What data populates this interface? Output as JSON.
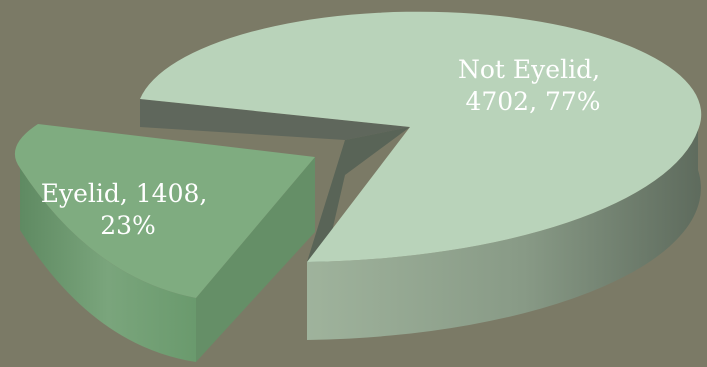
{
  "chart_data": {
    "type": "pie",
    "title": "",
    "style": "3d-exploded",
    "legend": "none",
    "slices": [
      {
        "name": "Eyelid",
        "value": 1408,
        "percent": 23,
        "label_lines": [
          "Eyelid, 1408,",
          "23%"
        ],
        "color": "#7fac80",
        "side_color": "#6e9b70"
      },
      {
        "name": "Not Eyelid",
        "value": 4702,
        "percent": 77,
        "label_lines": [
          "Not Eyelid,",
          "4702, 77%"
        ],
        "color": "#b9d3ba",
        "side_color": "#8e9e8c"
      }
    ]
  }
}
